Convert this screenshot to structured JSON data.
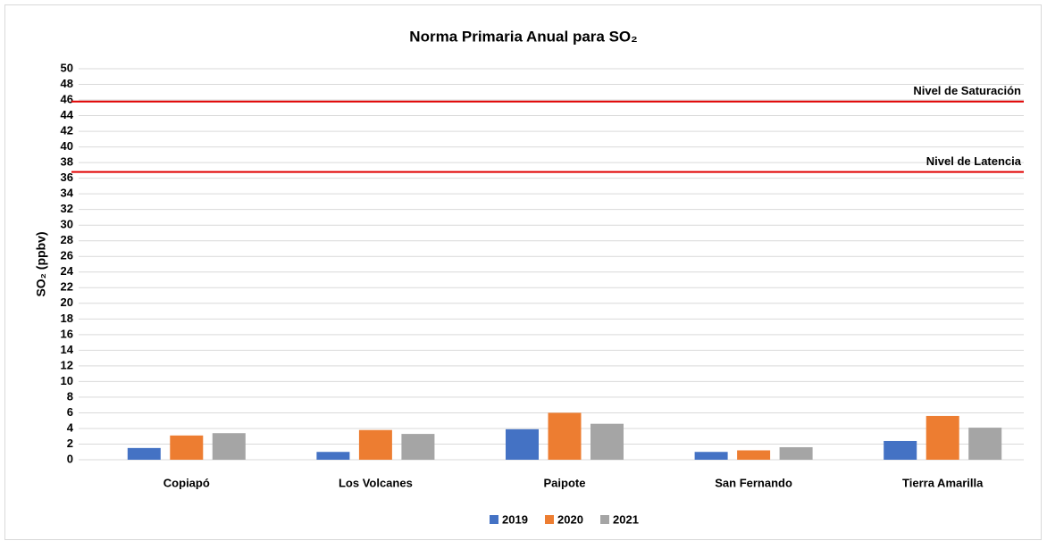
{
  "chart_data": {
    "type": "bar",
    "title": "Norma Primaria Anual para SO₂",
    "y_label": "SO₂ (ppbv)",
    "categories": [
      "Copiapó",
      "Los Volcanes",
      "Paipote",
      "San Fernando",
      "Tierra Amarilla"
    ],
    "series": [
      {
        "name": "2019",
        "color": "#4472c4",
        "values": [
          1.5,
          1.0,
          3.9,
          1.0,
          2.4
        ]
      },
      {
        "name": "2020",
        "color": "#ed7d31",
        "values": [
          3.1,
          3.8,
          6.0,
          1.2,
          5.6
        ]
      },
      {
        "name": "2021",
        "color": "#a5a5a5",
        "values": [
          3.4,
          3.3,
          4.6,
          1.6,
          4.1
        ]
      }
    ],
    "reference_lines": [
      {
        "label": "Nivel de Saturación",
        "value": 45.8,
        "color": "#e00000"
      },
      {
        "label": "Nivel de Latencia",
        "value": 36.8,
        "color": "#e00000"
      }
    ],
    "ylim": [
      0,
      50
    ],
    "yticks": [
      0,
      2,
      4,
      6,
      8,
      10,
      12,
      14,
      16,
      18,
      20,
      22,
      24,
      26,
      28,
      30,
      32,
      34,
      36,
      38,
      40,
      42,
      44,
      46,
      48,
      50
    ],
    "grid": true,
    "legend": "bottom"
  }
}
